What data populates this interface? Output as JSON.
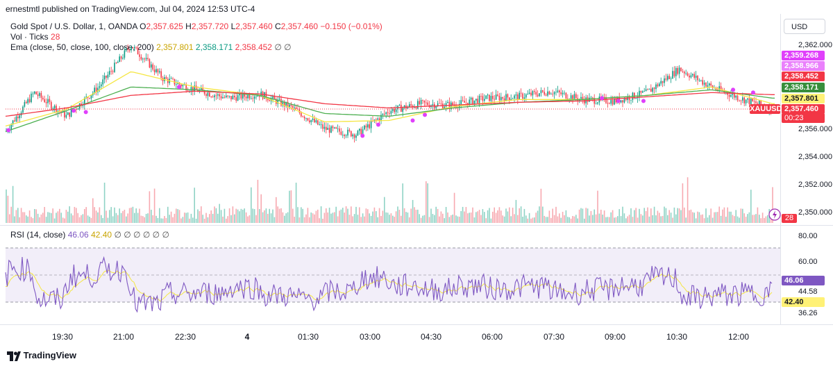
{
  "header": {
    "published": "ernestmtl published on TradingView.com, Jul 04, 2024 12:53 UTC-4",
    "symbol_title": "Gold Spot / U.S. Dollar, 1, OANDA",
    "ohlc": {
      "o_label": "O",
      "o": "2,357.625",
      "h_label": "H",
      "h": "2,357.720",
      "l_label": "L",
      "l": "2,357.460",
      "c_label": "C",
      "c": "2,357.460",
      "change": "−0.150 (−0.01%)"
    },
    "vol_label": "Vol · Ticks",
    "vol_value": "28",
    "ema_label": "Ema (close, 50, close, 100, close, 200)",
    "ema_values": [
      "2,357.801",
      "2,358.171",
      "2,358.452"
    ],
    "ema_extra": [
      "∅",
      "∅"
    ]
  },
  "currency": "USD",
  "price_axis": [
    "2,362.000",
    "2,356.000",
    "2,354.000",
    "2,352.000",
    "2,350.000"
  ],
  "price_tags": {
    "p1": "2,359.268",
    "p2": "2,358.966",
    "ema200": "2,358.452",
    "ema100": "2,358.171",
    "ema50": "2,357.801",
    "last": "2,357.460",
    "timer": "00:23",
    "symbol": "XAUUSD",
    "vol": "28"
  },
  "rsi": {
    "label": "RSI (14, close)",
    "value": "46.06",
    "ma": "42.40",
    "extra": [
      "∅",
      "∅",
      "∅",
      "∅",
      "∅",
      "∅"
    ],
    "axis": [
      "80.00",
      "60.00",
      "44.58",
      "36.26"
    ]
  },
  "time_axis": [
    "19:30",
    "21:00",
    "22:30",
    "4",
    "01:30",
    "03:00",
    "04:30",
    "06:00",
    "07:30",
    "09:00",
    "10:30",
    "12:00"
  ],
  "brand": "TradingView",
  "colors": {
    "up": "#089981",
    "down": "#f23645",
    "ema50": "#f5e642",
    "ema100": "#4caf50",
    "ema200": "#f23645",
    "rsi": "#7e57c2",
    "rsi_ma": "#f5e642",
    "tag_pink": "#e040fb"
  },
  "chart_data": [
    {
      "type": "candlestick",
      "title": "Gold Spot / U.S. Dollar, 1, OANDA",
      "x_ticks": [
        "19:30",
        "21:00",
        "22:30",
        "4",
        "01:30",
        "03:00",
        "04:30",
        "06:00",
        "07:30",
        "09:00",
        "10:30",
        "12:00"
      ],
      "ylim": [
        2349.5,
        2362.5
      ],
      "series": [
        {
          "name": "Price (close, approx.)",
          "x": [
            "18:50",
            "19:30",
            "20:15",
            "21:00",
            "21:45",
            "22:30",
            "23:15",
            "00:00",
            "00:45",
            "01:30",
            "02:15",
            "03:00",
            "03:45",
            "04:30",
            "05:15",
            "06:00",
            "06:45",
            "07:30",
            "08:15",
            "09:00",
            "09:45",
            "10:30",
            "11:15",
            "12:00",
            "12:40"
          ],
          "values": [
            2355.8,
            2358.6,
            2356.9,
            2359.0,
            2362.0,
            2359.6,
            2358.8,
            2358.2,
            2358.5,
            2357.5,
            2356.0,
            2355.6,
            2357.3,
            2357.8,
            2357.7,
            2358.2,
            2358.3,
            2358.7,
            2358.1,
            2358.0,
            2358.6,
            2360.3,
            2359.0,
            2358.1,
            2357.46
          ]
        },
        {
          "name": "Ema 50",
          "x": [
            "18:50",
            "20:15",
            "21:45",
            "23:15",
            "00:45",
            "02:15",
            "03:45",
            "05:15",
            "06:45",
            "08:15",
            "09:45",
            "11:15",
            "12:40"
          ],
          "values": [
            2356.2,
            2357.4,
            2360.1,
            2359.0,
            2358.4,
            2356.5,
            2356.6,
            2357.6,
            2358.1,
            2358.1,
            2358.4,
            2359.0,
            2357.8
          ]
        },
        {
          "name": "Ema 100",
          "x": [
            "18:50",
            "20:15",
            "21:45",
            "23:15",
            "00:45",
            "02:15",
            "03:45",
            "05:15",
            "06:45",
            "08:15",
            "09:45",
            "11:15",
            "12:40"
          ],
          "values": [
            2355.8,
            2357.3,
            2359.0,
            2358.8,
            2358.4,
            2357.1,
            2356.9,
            2357.5,
            2357.9,
            2358.1,
            2358.4,
            2358.8,
            2358.2
          ]
        },
        {
          "name": "Ema 200",
          "x": [
            "18:50",
            "20:15",
            "21:45",
            "23:15",
            "00:45",
            "02:15",
            "03:45",
            "05:15",
            "06:45",
            "08:15",
            "09:45",
            "11:15",
            "12:40"
          ],
          "values": [
            2356.9,
            2357.5,
            2358.4,
            2358.7,
            2358.5,
            2357.8,
            2357.5,
            2357.7,
            2357.9,
            2358.0,
            2358.3,
            2358.6,
            2358.45
          ]
        }
      ],
      "last_price": 2357.46
    },
    {
      "type": "bar",
      "title": "Vol · Ticks",
      "series": [
        {
          "name": "Vol · Ticks",
          "last": 28
        }
      ]
    },
    {
      "type": "line",
      "title": "RSI (14, close)",
      "ylim": [
        30,
        85
      ],
      "bands": [
        70,
        30
      ],
      "series": [
        {
          "name": "RSI",
          "last": 46.06
        },
        {
          "name": "RSI MA",
          "last": 42.4
        }
      ]
    }
  ]
}
